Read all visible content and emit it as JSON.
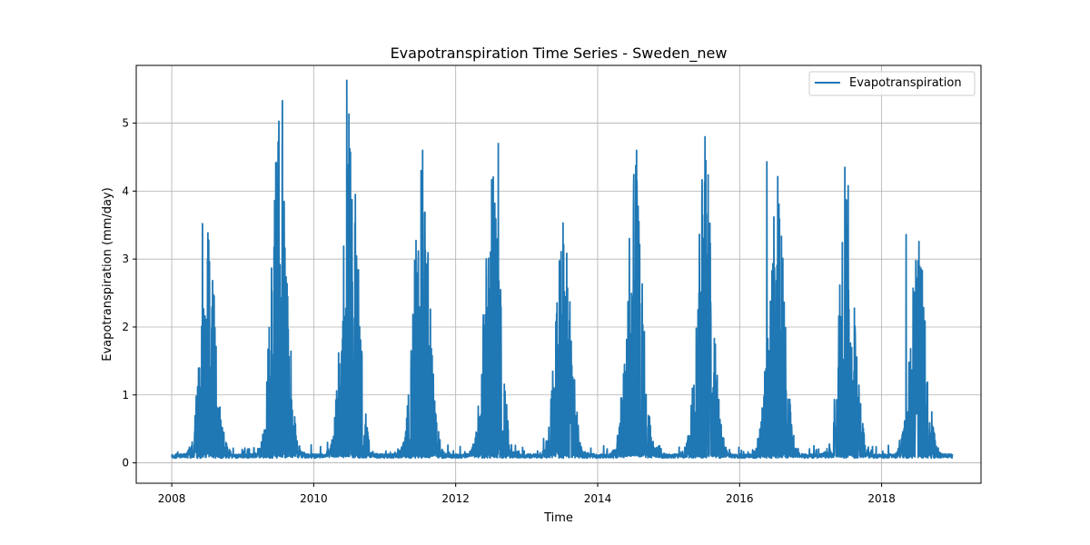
{
  "chart_data": {
    "type": "line",
    "title": "Evapotranspiration Time Series - Sweden_new",
    "xlabel": "Time",
    "ylabel": "Evapotranspiration (mm/day)",
    "x_range": [
      "2008-01-01",
      "2019-01-01"
    ],
    "xlim": [
      2007.5,
      2019.4
    ],
    "ylim": [
      -0.3,
      5.85
    ],
    "x_ticks": [
      "2008",
      "2010",
      "2012",
      "2014",
      "2016",
      "2018"
    ],
    "y_ticks": [
      "0",
      "1",
      "2",
      "3",
      "4",
      "5"
    ],
    "grid": true,
    "legend": {
      "position": "top-right",
      "entries": [
        "Evapotranspiration"
      ]
    },
    "series": [
      {
        "name": "Evapotranspiration",
        "color": "#1f77b4",
        "annual_peaks": [
          {
            "year": 2008,
            "date": "2008-06-07",
            "value": 3.52
          },
          {
            "year": 2009,
            "date": "2009-07-24",
            "value": 5.33
          },
          {
            "year": 2010,
            "date": "2010-06-20",
            "value": 5.63
          },
          {
            "year": 2011,
            "date": "2011-07-15",
            "value": 4.6
          },
          {
            "year": 2012,
            "date": "2012-08-07",
            "value": 4.7
          },
          {
            "year": 2013,
            "date": "2013-07-07",
            "value": 3.53
          },
          {
            "year": 2014,
            "date": "2014-07-20",
            "value": 4.6
          },
          {
            "year": 2015,
            "date": "2015-07-07",
            "value": 4.8
          },
          {
            "year": 2016,
            "date": "2016-05-20",
            "value": 4.43
          },
          {
            "year": 2017,
            "date": "2017-06-26",
            "value": 4.35
          },
          {
            "year": 2018,
            "date": "2018-05-07",
            "value": 3.36
          }
        ],
        "winter_baseline": 0.1
      }
    ]
  }
}
